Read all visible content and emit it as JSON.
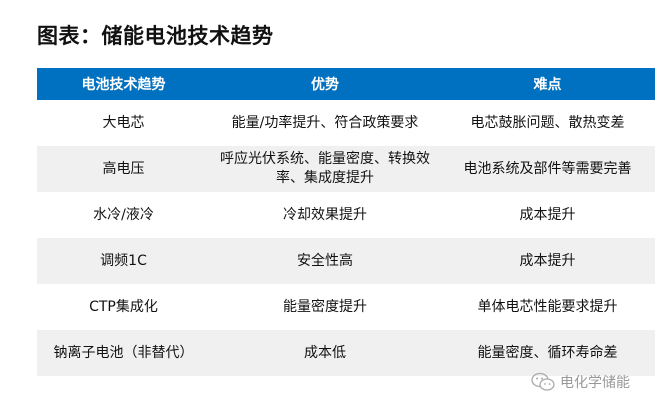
{
  "title": "图表：储能电池技术趋势",
  "table": {
    "headers": [
      "电池技术趋势",
      "优势",
      "难点"
    ],
    "rows": [
      [
        "大电芯",
        "能量/功率提升、符合政策要求",
        "电芯鼓胀问题、散热变差"
      ],
      [
        "高电压",
        "呼应光伏系统、能量密度、转换效率、集成度提升",
        "电池系统及部件等需要完善"
      ],
      [
        "水冷/液冷",
        "冷却效果提升",
        "成本提升"
      ],
      [
        "调频1C",
        "安全性高",
        "成本提升"
      ],
      [
        "CTP集成化",
        "能量密度提升",
        "单体电芯性能要求提升"
      ],
      [
        "钠离子电池（非替代）",
        "成本低",
        "能量密度、循环寿命差"
      ]
    ]
  },
  "watermark": {
    "text": "电化学储能",
    "icon": "wechat-icon"
  },
  "colors": {
    "header_bg": "#0070c0",
    "stripe": "#f0f0f0"
  }
}
